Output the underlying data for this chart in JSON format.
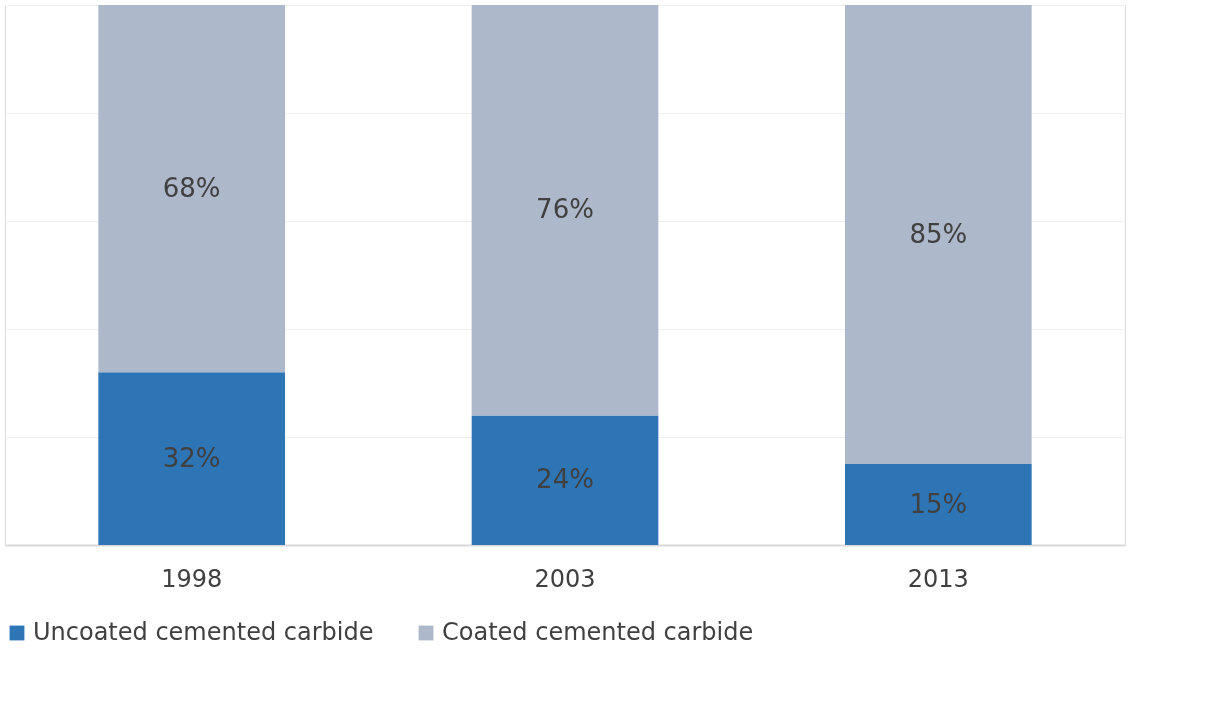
{
  "chart_data": {
    "type": "bar",
    "stacked": true,
    "categories": [
      "1998",
      "2003",
      "2013"
    ],
    "series": [
      {
        "name": "Uncoated cemented carbide",
        "color": "#2e75b6",
        "values": [
          32,
          24,
          15
        ],
        "value_labels": [
          "32%",
          "24%",
          "15%"
        ]
      },
      {
        "name": "Coated cemented carbide",
        "color": "#adb9ca",
        "values": [
          68,
          76,
          85
        ],
        "value_labels": [
          "68%",
          "76%",
          "85%"
        ]
      }
    ],
    "ylim": [
      0,
      100
    ],
    "yticks": [
      {
        "value": 0,
        "label": null
      },
      {
        "value": 20,
        "label": null
      },
      {
        "value": 40,
        "label": null
      },
      {
        "value": 60,
        "label": null
      },
      {
        "value": 80,
        "label": null
      },
      {
        "value": 100,
        "label": null
      }
    ],
    "grid": "y",
    "tick_labels": "x",
    "legend": "bottom"
  }
}
